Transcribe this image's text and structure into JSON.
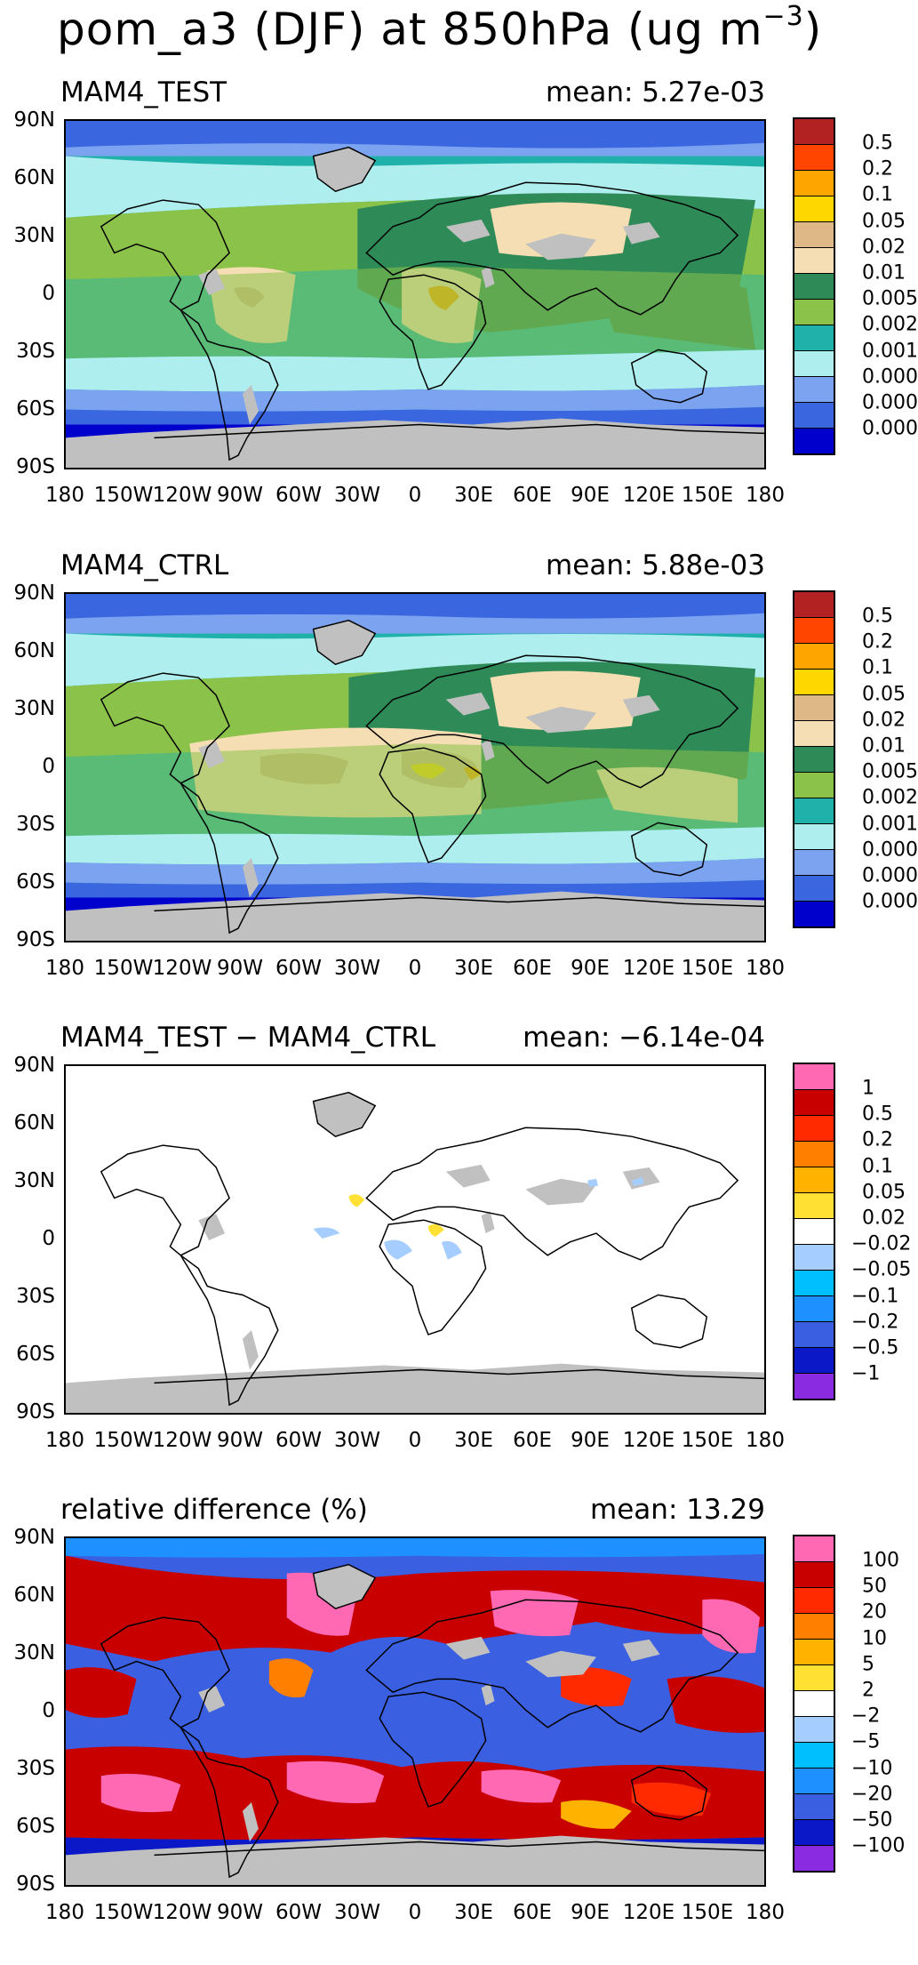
{
  "title": {
    "text": "pom_a3 (DJF) at 850hPa (ug m",
    "sup": "−3",
    "close": ")"
  },
  "lat_labels": [
    "90N",
    "60N",
    "30N",
    "0",
    "30S",
    "60S",
    "90S"
  ],
  "lon_labels": [
    "180",
    "150W",
    "120W",
    "90W",
    "60W",
    "30W",
    "0",
    "30E",
    "60E",
    "90E",
    "120E",
    "150E",
    "180"
  ],
  "colors": {
    "abs": [
      "#b22222",
      "#ff4500",
      "#ffa500",
      "#ffd700",
      "#deb887",
      "#f5deb3",
      "#2e8b57",
      "#8bc34a",
      "#20b2aa",
      "#afeeee",
      "#7ba3f0",
      "#3a66e0",
      "#0000cd"
    ],
    "diff": [
      "#ff69b4",
      "#c80000",
      "#ff2a00",
      "#ff7f00",
      "#ffb300",
      "#ffe033",
      "#ffffff",
      "#a6cdff",
      "#00bfff",
      "#1e90ff",
      "#3a5fe0",
      "#0a18c8",
      "#8a2be2"
    ],
    "land_gray": "#c0c0c0"
  },
  "panels": [
    {
      "label": "MAM4_TEST",
      "mean": "mean: 5.27e-03",
      "colorbar": [
        "0.5",
        "0.2",
        "0.1",
        "0.05",
        "0.02",
        "0.01",
        "0.005",
        "0.002",
        "0.001",
        "0.0005",
        "0.0002",
        "0.0001"
      ]
    },
    {
      "label": "MAM4_CTRL",
      "mean": "mean: 5.88e-03",
      "colorbar": [
        "0.5",
        "0.2",
        "0.1",
        "0.05",
        "0.02",
        "0.01",
        "0.005",
        "0.002",
        "0.001",
        "0.0005",
        "0.0002",
        "0.0001"
      ]
    },
    {
      "label": "MAM4_TEST − MAM4_CTRL",
      "mean": "mean: −6.14e-04",
      "colorbar": [
        "1",
        "0.5",
        "0.2",
        "0.1",
        "0.05",
        "0.02",
        "−0.02",
        "−0.05",
        "−0.1",
        "−0.2",
        "−0.5",
        "−1"
      ]
    },
    {
      "label": "relative difference (%)",
      "mean": "mean: 13.29",
      "colorbar": [
        "100",
        "50",
        "20",
        "10",
        "5",
        "2",
        "−2",
        "−5",
        "−10",
        "−20",
        "−50",
        "−100"
      ]
    }
  ]
}
